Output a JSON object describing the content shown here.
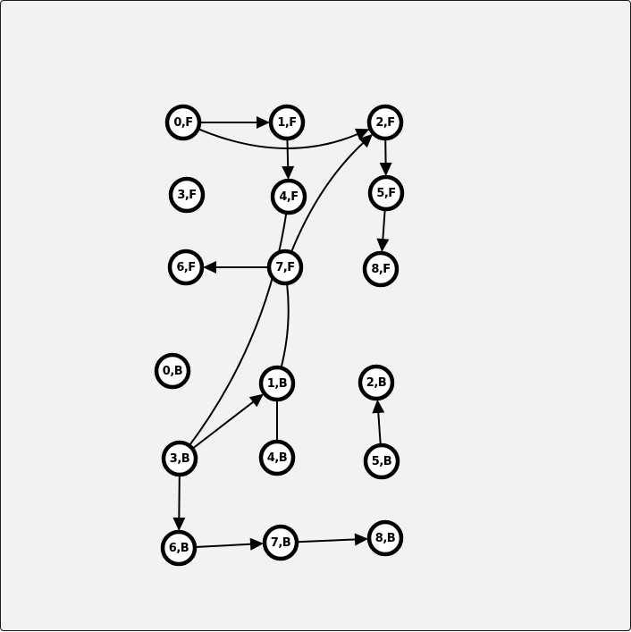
{
  "graph": {
    "nodes": [
      {
        "id": "0F",
        "label": "0,F"
      },
      {
        "id": "1F",
        "label": "1,F"
      },
      {
        "id": "2F",
        "label": "2,F"
      },
      {
        "id": "3F",
        "label": "3,F"
      },
      {
        "id": "4F",
        "label": "4,F"
      },
      {
        "id": "5F",
        "label": "5,F"
      },
      {
        "id": "6F",
        "label": "6,F"
      },
      {
        "id": "7F",
        "label": "7,F"
      },
      {
        "id": "8F",
        "label": "8,F"
      },
      {
        "id": "0B",
        "label": "0,B"
      },
      {
        "id": "1B",
        "label": "1,B"
      },
      {
        "id": "2B",
        "label": "2,B"
      },
      {
        "id": "3B",
        "label": "3,B"
      },
      {
        "id": "4B",
        "label": "4,B"
      },
      {
        "id": "5B",
        "label": "5,B"
      },
      {
        "id": "6B",
        "label": "6,B"
      },
      {
        "id": "7B",
        "label": "7,B"
      },
      {
        "id": "8B",
        "label": "8,B"
      }
    ],
    "edges": [
      {
        "from": "0F",
        "to": "1F",
        "directed": true
      },
      {
        "from": "0F",
        "to": "2F",
        "directed": true
      },
      {
        "from": "1F",
        "to": "4F",
        "directed": true
      },
      {
        "from": "2F",
        "to": "5F",
        "directed": true
      },
      {
        "from": "5F",
        "to": "8F",
        "directed": true
      },
      {
        "from": "7F",
        "to": "6F",
        "directed": true
      },
      {
        "from": "7F",
        "to": "2F",
        "directed": true
      },
      {
        "from": "7F",
        "to": "1B",
        "directed": false
      },
      {
        "from": "4F",
        "to": "3B",
        "directed": false
      },
      {
        "from": "3B",
        "to": "1B",
        "directed": true
      },
      {
        "from": "4B",
        "to": "1B",
        "directed": false
      },
      {
        "from": "5B",
        "to": "2B",
        "directed": true
      },
      {
        "from": "3B",
        "to": "6B",
        "directed": true
      },
      {
        "from": "6B",
        "to": "7B",
        "directed": true
      },
      {
        "from": "7B",
        "to": "8B",
        "directed": true
      }
    ]
  }
}
